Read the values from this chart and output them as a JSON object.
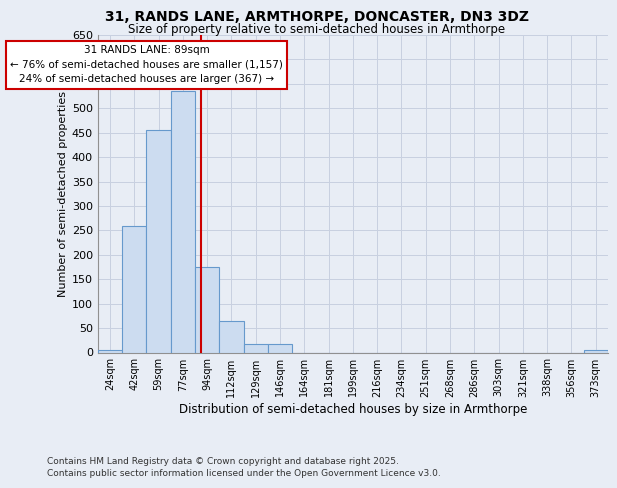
{
  "title1": "31, RANDS LANE, ARMTHORPE, DONCASTER, DN3 3DZ",
  "title2": "Size of property relative to semi-detached houses in Armthorpe",
  "xlabel": "Distribution of semi-detached houses by size in Armthorpe",
  "ylabel": "Number of semi-detached properties",
  "categories": [
    "24sqm",
    "42sqm",
    "59sqm",
    "77sqm",
    "94sqm",
    "112sqm",
    "129sqm",
    "146sqm",
    "164sqm",
    "181sqm",
    "199sqm",
    "216sqm",
    "234sqm",
    "251sqm",
    "268sqm",
    "286sqm",
    "303sqm",
    "321sqm",
    "338sqm",
    "356sqm",
    "373sqm"
  ],
  "values": [
    5,
    260,
    455,
    535,
    175,
    65,
    17,
    17,
    0,
    0,
    0,
    0,
    0,
    0,
    0,
    0,
    0,
    0,
    0,
    0,
    5
  ],
  "bar_color": "#ccdcf0",
  "bar_edge_color": "#6699cc",
  "red_line_x": 3.75,
  "annotation_line1": "31 RANDS LANE: 89sqm",
  "annotation_line2": "← 76% of semi-detached houses are smaller (1,157)",
  "annotation_line3": "24% of semi-detached houses are larger (367) →",
  "annotation_box_color": "#ffffff",
  "annotation_box_edge": "#cc0000",
  "red_line_color": "#cc0000",
  "ylim_max": 650,
  "yticks": [
    0,
    50,
    100,
    150,
    200,
    250,
    300,
    350,
    400,
    450,
    500,
    550,
    600,
    650
  ],
  "footnote1": "Contains HM Land Registry data © Crown copyright and database right 2025.",
  "footnote2": "Contains public sector information licensed under the Open Government Licence v3.0.",
  "bg_color": "#e8edf5",
  "grid_color": "#c8d0e0"
}
